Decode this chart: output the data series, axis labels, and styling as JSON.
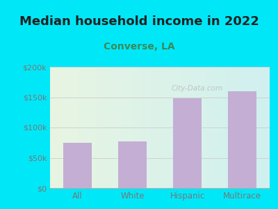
{
  "title": "Median household income in 2022",
  "subtitle": "Converse, LA",
  "categories": [
    "All",
    "White",
    "Hispanic",
    "Multirace"
  ],
  "values": [
    75000,
    77000,
    148000,
    160000
  ],
  "bar_color": "#c4aed4",
  "ylim": [
    0,
    200000
  ],
  "yticks": [
    0,
    50000,
    100000,
    150000,
    200000
  ],
  "ytick_labels": [
    "$0",
    "$50k",
    "$100k",
    "$150k",
    "$200k"
  ],
  "background_outer": "#00e8f8",
  "title_fontsize": 13,
  "title_color": "#222222",
  "subtitle_fontsize": 10,
  "subtitle_color": "#3a8a5a",
  "tick_color": "#777777",
  "grid_color": "#cccccc",
  "watermark": "City-Data.com",
  "watermark_color": "#aaaaaa",
  "plot_bg_left": "#e8f5e2",
  "plot_bg_right": "#d0f0f0"
}
